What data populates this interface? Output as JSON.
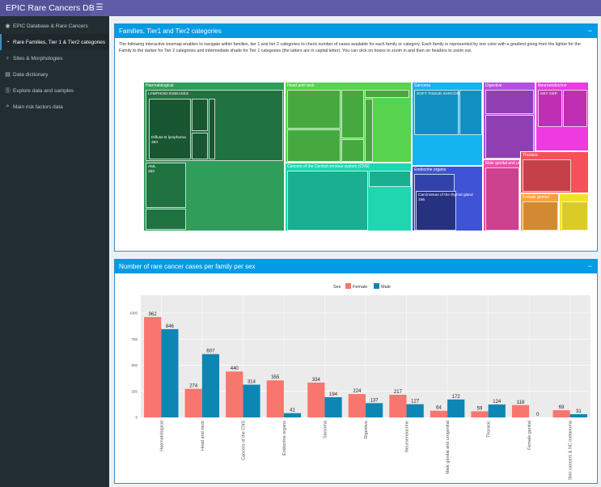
{
  "app": {
    "title": "EPIC Rare Cancers DB"
  },
  "sidebar": {
    "items": [
      {
        "label": "EPIC Database & Rare Cancers",
        "icon": "◉",
        "active": false
      },
      {
        "label": "Rare Families, Tier 1 & Tier2 categories",
        "icon": "◔",
        "active": true
      },
      {
        "label": "Sites & Morphologies",
        "icon": "♀",
        "active": false
      },
      {
        "label": "Data dictionary",
        "icon": "▤",
        "active": false
      },
      {
        "label": "Explore data and samples",
        "icon": "Ⓢ",
        "active": false
      },
      {
        "label": "Main risk factors data",
        "icon": "⌕",
        "active": false
      }
    ]
  },
  "treemap_box": {
    "title": "Families, Tier1 and Tier2 categories",
    "collapse": "−",
    "description": "The following interactive treemap enables to navigate within families, tier 1 and tier 2 categories to check number of cases available for each family or category. Each family is represented by one color with a gradient going from the lighter for the Family to the darker for Tier 2 categories and intermediate shade for Tier 1 categories (the latters are in capital letter). You can click on boxes to zoom in and then on headers to zoom out.",
    "families": [
      {
        "label": "Haematological",
        "color": "#2e9e5a"
      },
      {
        "label": "Head and neck",
        "color": "#57d34f"
      },
      {
        "label": "Cancers of the Central nervous system (CNS)",
        "color": "#1fd6b0"
      },
      {
        "label": "Sarcoma",
        "color": "#14b4f0"
      },
      {
        "label": "Endocrine organs",
        "color": "#3f53d6"
      },
      {
        "label": "Digestive",
        "color": "#b44fe0"
      },
      {
        "label": "Neuroendocrine",
        "color": "#ee3be0"
      },
      {
        "label": "Male genital and urogenital",
        "color": "#f04ea8"
      },
      {
        "label": "Thoracic",
        "color": "#f6505a"
      },
      {
        "label": "Female genital",
        "color": "#f6a23a"
      },
      {
        "label": "",
        "color": "#f2e12a"
      }
    ],
    "tier1": [
      {
        "label": "LYMPHOID DISEASES"
      },
      {
        "label": "Diffuse B lymphoma",
        "value": "383"
      },
      {
        "label": "AML",
        "value": "250"
      },
      {
        "label": "SOFT TISSUE SARCOMA"
      },
      {
        "label": "Carcinomas of the thyroid gland",
        "value": "155"
      },
      {
        "label": "NET GEP"
      }
    ]
  },
  "chart_box": {
    "title": "Number of rare cancer cases per family per sex",
    "collapse": "−"
  },
  "chart_data": {
    "type": "bar",
    "title": "",
    "legend_title": "Sex",
    "categories": [
      "Haematological",
      "Head and neck",
      "Cancers of the CNS",
      "Endocrine organs",
      "Sarcoma",
      "Digestive",
      "Neuroendocrine",
      "Male genital and urogenital",
      "Thoracic",
      "Female genital",
      "Skin cancers & NC melanoma"
    ],
    "series": [
      {
        "name": "Female",
        "color": "#f8766d",
        "values": [
          962,
          274,
          440,
          355,
          334,
          224,
          217,
          64,
          59,
          118,
          69
        ]
      },
      {
        "name": "Male",
        "color": "#0e86b4",
        "values": [
          846,
          607,
          314,
          41,
          194,
          137,
          127,
          172,
          124,
          0,
          31
        ]
      }
    ],
    "value_labels": [
      [
        "962",
        "274",
        "440",
        "355",
        "334",
        "224",
        "217",
        "64",
        "59",
        "118",
        "69"
      ],
      [
        "846",
        "607",
        "314",
        "41",
        "194",
        "137",
        "127",
        "172",
        "124",
        "0",
        "31"
      ]
    ],
    "yticks": [
      "0",
      "250",
      "500",
      "750",
      "1000"
    ],
    "ytick_values": [
      0,
      250,
      500,
      750,
      1000
    ],
    "ylim": [
      0,
      1000
    ],
    "grid": true
  }
}
